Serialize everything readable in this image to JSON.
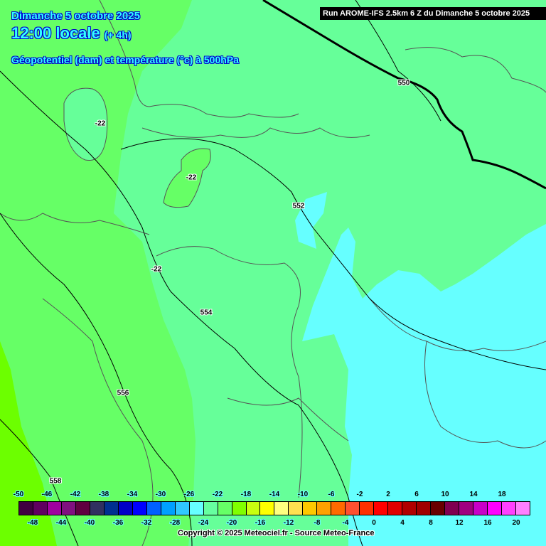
{
  "header": {
    "date": "Dimanche 5 octobre 2025",
    "time": "12:00 locale",
    "offset": "(+ 4h)",
    "field": "Géopotentiel (dam) et température (°c) à 500hPa",
    "run": "Run AROME-IFS 2.5km 6 Z du Dimanche 5 octobre 2025"
  },
  "map": {
    "colors": {
      "temp_-20": "#6cff00",
      "temp_-22": "#66ff66",
      "temp_-24": "#66ff99",
      "temp_-26": "#66ffff",
      "borders": "#000000",
      "regions": "#555555"
    },
    "contour_labels": [
      {
        "text": "-22"
      },
      {
        "text": "-22"
      },
      {
        "text": "-22"
      },
      {
        "text": "550"
      },
      {
        "text": "552"
      },
      {
        "text": "554"
      },
      {
        "text": "556"
      },
      {
        "text": "558"
      }
    ]
  },
  "legend": {
    "labels": [
      "-50",
      "-48",
      "-46",
      "-44",
      "-42",
      "-40",
      "-38",
      "-36",
      "-34",
      "-32",
      "-30",
      "-28",
      "-26",
      "-24",
      "-22",
      "-20",
      "-18",
      "-16",
      "-14",
      "-12",
      "-10",
      "-8",
      "-6",
      "-4",
      "-2",
      "0",
      "2",
      "4",
      "6",
      "8",
      "10",
      "12",
      "14",
      "16",
      "18",
      "20"
    ],
    "colors": [
      "#400040",
      "#600060",
      "#a000a0",
      "#801080",
      "#600040",
      "#303060",
      "#003090",
      "#0000c8",
      "#0000ff",
      "#0060ff",
      "#00a0ff",
      "#30c8ff",
      "#66ffff",
      "#66ffa0",
      "#66ff66",
      "#80ff00",
      "#c8ff10",
      "#ffff00",
      "#ffff80",
      "#ffe050",
      "#ffc800",
      "#ffa000",
      "#ff6a00",
      "#ff5030",
      "#ff3000",
      "#ff0000",
      "#e00000",
      "#b00000",
      "#a00000",
      "#680000",
      "#800050",
      "#a00080",
      "#c800c8",
      "#ff00ff",
      "#ff40ff",
      "#ff80ff"
    ]
  },
  "copyright": "Copyright © 2025 Meteociel.fr - Source Meteo-France"
}
